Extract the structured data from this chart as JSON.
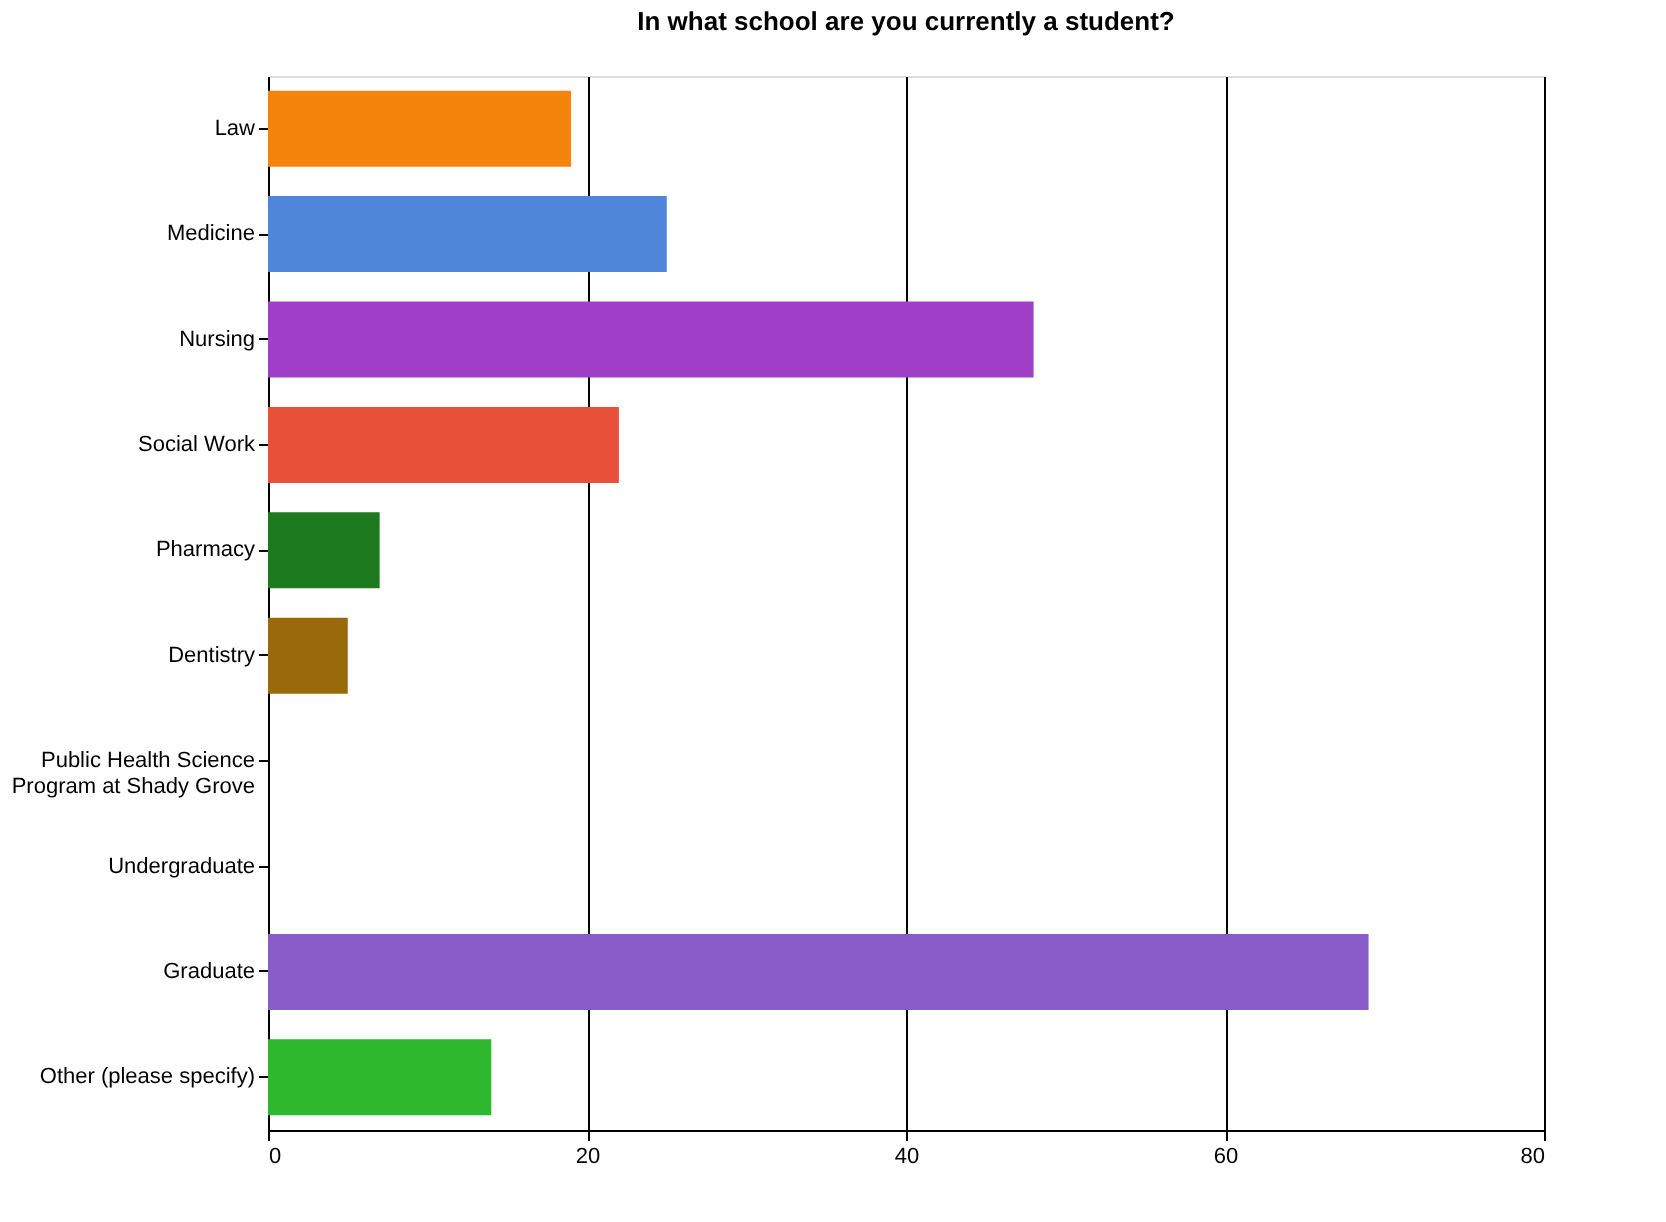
{
  "chart_data": {
    "type": "bar",
    "orientation": "horizontal",
    "title": "In what school are you currently a student?",
    "categories": [
      "Law",
      "Medicine",
      "Nursing",
      "Social Work",
      "Pharmacy",
      "Dentistry",
      "Public Health Science Program at Shady Grove",
      "Undergraduate",
      "Graduate",
      "Other (please specify)"
    ],
    "values": [
      19,
      25,
      48,
      22,
      7,
      5,
      0,
      0,
      69,
      14
    ],
    "colors": [
      "#f5840c",
      "#4f86d9",
      "#a040c8",
      "#e8503a",
      "#1e7a1e",
      "#9a6a0a",
      "#888888",
      "#888888",
      "#8a5cc8",
      "#2eb82e"
    ],
    "xlim": [
      0,
      80
    ],
    "xticks": [
      0,
      20,
      40,
      60,
      80
    ],
    "grid": "x"
  }
}
